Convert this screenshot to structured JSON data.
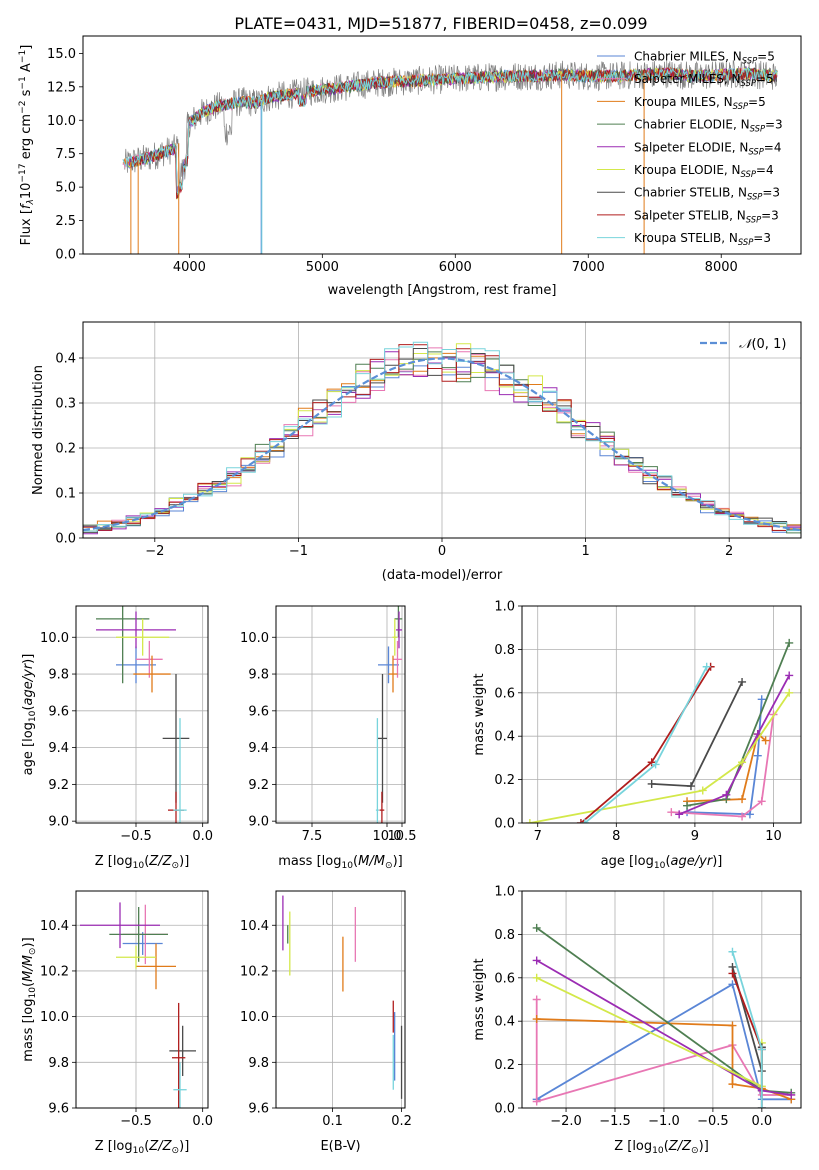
{
  "figure_title": "PLATE=0431, MJD=51877, FIBERID=0458, z=0.099",
  "colors": {
    "Chabrier MILES": "#5a86d6",
    "Salpeter MILES": "#e877b4",
    "Kroupa MILES": "#e07b1a",
    "Chabrier ELODIE": "#4f7f52",
    "Salpeter ELODIE": "#9b2cb3",
    "Kroupa ELODIE": "#d3e84a",
    "Chabrier STELIB": "#4a4a4a",
    "Salpeter STELIB": "#b01d1d",
    "Kroupa STELIB": "#78d4dc",
    "spectrum": "#808080",
    "normal": "#5b8fd6"
  },
  "chart_data": [
    {
      "id": "spectrum",
      "type": "line",
      "xlabel": "wavelength [Angstrom, rest frame]",
      "ylabel": "Flux [f_λ 10^-17 erg cm^-2 s^-1 A^-1]",
      "xlim": [
        3200,
        8600
      ],
      "ylim": [
        0,
        16.3
      ],
      "xticks": [
        4000,
        5000,
        6000,
        7000,
        8000
      ],
      "yticks": [
        0.0,
        2.5,
        5.0,
        7.5,
        10.0,
        12.5,
        15.0
      ],
      "legend_position": "right",
      "legend": [
        {
          "label": "Chabrier MILES, N_SSP=5",
          "model": "Chabrier MILES"
        },
        {
          "label": "Salpeter MILES, N_SSP=5",
          "model": "Salpeter MILES"
        },
        {
          "label": "Kroupa MILES, N_SSP=5",
          "model": "Kroupa MILES"
        },
        {
          "label": "Chabrier ELODIE, N_SSP=3",
          "model": "Chabrier ELODIE"
        },
        {
          "label": "Salpeter ELODIE, N_SSP=4",
          "model": "Salpeter ELODIE"
        },
        {
          "label": "Kroupa ELODIE, N_SSP=4",
          "model": "Kroupa ELODIE"
        },
        {
          "label": "Chabrier STELIB, N_SSP=3",
          "model": "Chabrier STELIB"
        },
        {
          "label": "Salpeter STELIB, N_SSP=3",
          "model": "Salpeter STELIB"
        },
        {
          "label": "Kroupa STELIB, N_SSP=3",
          "model": "Kroupa STELIB"
        }
      ],
      "continuum": {
        "x": [
          3500,
          3600,
          3700,
          3800,
          3900,
          4000,
          4100,
          4200,
          4300,
          4400,
          4500,
          4600,
          4800,
          5000,
          5200,
          5400,
          5600,
          5800,
          6000,
          6200,
          6400,
          6600,
          6800,
          7000,
          7200,
          7400,
          7600,
          7800,
          8000,
          8200,
          8400
        ],
        "y": [
          6.7,
          7.0,
          7.2,
          7.6,
          7.9,
          9.8,
          10.6,
          11.0,
          11.2,
          11.4,
          11.3,
          11.7,
          12.0,
          12.3,
          12.5,
          12.8,
          12.9,
          13.0,
          13.1,
          13.2,
          13.3,
          13.3,
          13.4,
          13.3,
          13.3,
          13.4,
          13.5,
          13.3,
          13.4,
          13.5,
          13.3
        ]
      }
    },
    {
      "id": "residuals",
      "type": "bar",
      "xlabel": "(data-model)/error",
      "ylabel": "Normed distribution",
      "xlim": [
        -2.5,
        2.5
      ],
      "ylim": [
        0,
        0.48
      ],
      "xticks": [
        -2,
        -1,
        0,
        1,
        2
      ],
      "yticks": [
        0.0,
        0.1,
        0.2,
        0.3,
        0.4
      ],
      "grid": true,
      "legend_position": "top-right",
      "legend": [
        {
          "label": "N(0, 1)"
        }
      ],
      "bins": [
        -2.5,
        -2.4,
        -2.3,
        -2.2,
        -2.1,
        -2.0,
        -1.9,
        -1.8,
        -1.7,
        -1.6,
        -1.5,
        -1.4,
        -1.3,
        -1.2,
        -1.1,
        -1.0,
        -0.9,
        -0.8,
        -0.7,
        -0.6,
        -0.5,
        -0.4,
        -0.3,
        -0.2,
        -0.1,
        0.0,
        0.1,
        0.2,
        0.3,
        0.4,
        0.5,
        0.6,
        0.7,
        0.8,
        0.9,
        1.0,
        1.1,
        1.2,
        1.3,
        1.4,
        1.5,
        1.6,
        1.7,
        1.8,
        1.9,
        2.0,
        2.1,
        2.2,
        2.3,
        2.4,
        2.5
      ]
    },
    {
      "id": "age-vs-z",
      "type": "scatter",
      "xlabel": "Z [log10(Z/Z☉)]",
      "ylabel": "age [log10(age/yr)]",
      "xlim": [
        -0.95,
        0.04
      ],
      "ylim": [
        8.99,
        10.17
      ],
      "xticks": [
        -0.5,
        0.0
      ],
      "yticks": [
        9.0,
        9.2,
        9.4,
        9.6,
        9.8,
        10.0
      ],
      "grid": true,
      "points": [
        {
          "model": "Chabrier MILES",
          "x": -0.5,
          "xerr": 0.15,
          "y": 9.85,
          "yerr": 0.1
        },
        {
          "model": "Salpeter MILES",
          "x": -0.4,
          "xerr": 0.1,
          "y": 9.88,
          "yerr": 0.1
        },
        {
          "model": "Kroupa MILES",
          "x": -0.38,
          "xerr": 0.14,
          "y": 9.8,
          "yerr": 0.1
        },
        {
          "model": "Chabrier ELODIE",
          "x": -0.6,
          "xerr": 0.2,
          "y": 10.1,
          "yerr": 0.35
        },
        {
          "model": "Salpeter ELODIE",
          "x": -0.5,
          "xerr": 0.3,
          "y": 10.04,
          "yerr": 0.1
        },
        {
          "model": "Kroupa ELODIE",
          "x": -0.45,
          "xerr": 0.2,
          "y": 10.0,
          "yerr": 0.1
        },
        {
          "model": "Chabrier STELIB",
          "x": -0.2,
          "xerr": 0.1,
          "y": 9.45,
          "yerr": 0.35
        },
        {
          "model": "Salpeter STELIB",
          "x": -0.2,
          "xerr": 0.06,
          "y": 9.06,
          "yerr": 0.1
        },
        {
          "model": "Kroupa STELIB",
          "x": -0.17,
          "xerr": 0.05,
          "y": 9.06,
          "yerr": 0.5
        }
      ]
    },
    {
      "id": "age-vs-mass",
      "type": "scatter",
      "xlabel": "mass [log10(M/M☉)]",
      "ylabel": "",
      "xlim": [
        6.3,
        10.6
      ],
      "ylim": [
        8.99,
        10.17
      ],
      "xticks": [
        7.5,
        10.0,
        10.5
      ],
      "yticks": [
        9.0,
        9.2,
        9.4,
        9.6,
        9.8,
        10.0
      ],
      "grid": true,
      "points": [
        {
          "model": "Chabrier MILES",
          "x": 10.05,
          "xerr": 0.35,
          "y": 9.85,
          "yerr": 0.1
        },
        {
          "model": "Salpeter MILES",
          "x": 10.35,
          "xerr": 0.15,
          "y": 9.88,
          "yerr": 0.1
        },
        {
          "model": "Kroupa MILES",
          "x": 10.2,
          "xerr": 0.15,
          "y": 9.8,
          "yerr": 0.1
        },
        {
          "model": "Chabrier ELODIE",
          "x": 10.38,
          "xerr": 0.13,
          "y": 10.1,
          "yerr": 0.1
        },
        {
          "model": "Salpeter ELODIE",
          "x": 10.4,
          "xerr": 0.1,
          "y": 10.04,
          "yerr": 0.1
        },
        {
          "model": "Kroupa ELODIE",
          "x": 10.26,
          "xerr": 0.08,
          "y": 10.0,
          "yerr": 0.1
        },
        {
          "model": "Chabrier STELIB",
          "x": 9.85,
          "xerr": 0.15,
          "y": 9.45,
          "yerr": 0.35
        },
        {
          "model": "Salpeter STELIB",
          "x": 9.83,
          "xerr": 0.08,
          "y": 9.06,
          "yerr": 0.1
        },
        {
          "model": "Kroupa STELIB",
          "x": 9.68,
          "xerr": 0.05,
          "y": 9.06,
          "yerr": 0.5
        }
      ]
    },
    {
      "id": "weight-vs-age",
      "type": "line",
      "xlabel": "age [log10(age/yr)]",
      "ylabel": "mass weight",
      "xlim": [
        6.8,
        10.35
      ],
      "ylim": [
        0,
        1.0
      ],
      "xticks": [
        7,
        8,
        9,
        10
      ],
      "yticks": [
        0.0,
        0.2,
        0.4,
        0.6,
        0.8,
        1.0
      ],
      "grid": true,
      "series": [
        {
          "model": "Chabrier MILES",
          "x": [
            8.9,
            9.7,
            9.8,
            9.85
          ],
          "y": [
            0.05,
            0.04,
            0.31,
            0.57
          ]
        },
        {
          "model": "Salpeter MILES",
          "x": [
            8.7,
            9.6,
            9.85,
            10.0
          ],
          "y": [
            0.05,
            0.03,
            0.1,
            0.5
          ]
        },
        {
          "model": "Kroupa MILES",
          "x": [
            8.9,
            9.6,
            9.8,
            9.9
          ],
          "y": [
            0.1,
            0.11,
            0.41,
            0.38
          ]
        },
        {
          "model": "Chabrier ELODIE",
          "x": [
            8.9,
            9.4,
            10.2
          ],
          "y": [
            0.08,
            0.11,
            0.83
          ]
        },
        {
          "model": "Salpeter ELODIE",
          "x": [
            8.8,
            9.4,
            9.8,
            10.2
          ],
          "y": [
            0.04,
            0.13,
            0.41,
            0.68
          ]
        },
        {
          "model": "Kroupa ELODIE",
          "x": [
            6.9,
            9.1,
            9.6,
            10.2
          ],
          "y": [
            0.0,
            0.15,
            0.28,
            0.6
          ]
        },
        {
          "model": "Chabrier STELIB",
          "x": [
            8.45,
            8.95,
            9.6
          ],
          "y": [
            0.18,
            0.17,
            0.65
          ]
        },
        {
          "model": "Salpeter STELIB",
          "x": [
            7.55,
            8.45,
            9.2
          ],
          "y": [
            0.0,
            0.28,
            0.72
          ]
        },
        {
          "model": "Kroupa STELIB",
          "x": [
            7.6,
            8.5,
            9.15
          ],
          "y": [
            0.0,
            0.27,
            0.72
          ]
        }
      ]
    },
    {
      "id": "mass-vs-z",
      "type": "scatter",
      "xlabel": "Z [log10(Z/Z☉)]",
      "ylabel": "mass [log10(M/M☉)]",
      "xlim": [
        -0.95,
        0.04
      ],
      "ylim": [
        9.6,
        10.55
      ],
      "xticks": [
        -0.5,
        0.0
      ],
      "yticks": [
        9.6,
        9.8,
        10.0,
        10.2,
        10.4
      ],
      "grid": true,
      "points": [
        {
          "model": "Chabrier MILES",
          "x": -0.45,
          "xerr": 0.15,
          "y": 10.32,
          "yerr": 0.05
        },
        {
          "model": "Salpeter MILES",
          "x": -0.43,
          "xerr": 0.17,
          "y": 10.36,
          "yerr": 0.13
        },
        {
          "model": "Kroupa MILES",
          "x": -0.35,
          "xerr": 0.15,
          "y": 10.22,
          "yerr": 0.1
        },
        {
          "model": "Chabrier ELODIE",
          "x": -0.48,
          "xerr": 0.22,
          "y": 10.36,
          "yerr": 0.12
        },
        {
          "model": "Salpeter ELODIE",
          "x": -0.62,
          "xerr": 0.3,
          "y": 10.4,
          "yerr": 0.1
        },
        {
          "model": "Kroupa ELODIE",
          "x": -0.5,
          "xerr": 0.15,
          "y": 10.26,
          "yerr": 0.05
        },
        {
          "model": "Chabrier STELIB",
          "x": -0.15,
          "xerr": 0.1,
          "y": 9.85,
          "yerr": 0.11
        },
        {
          "model": "Salpeter STELIB",
          "x": -0.18,
          "xerr": 0.05,
          "y": 9.82,
          "yerr": 0.24
        },
        {
          "model": "Kroupa STELIB",
          "x": -0.17,
          "xerr": 0.05,
          "y": 9.68,
          "yerr": 0.12
        }
      ]
    },
    {
      "id": "mass-vs-ebv",
      "type": "scatter",
      "xlabel": "E(B-V)",
      "ylabel": "",
      "xlim": [
        0.018,
        0.205
      ],
      "ylim": [
        9.6,
        10.55
      ],
      "xticks": [
        0.1,
        0.2
      ],
      "yticks": [
        9.6,
        9.8,
        10.0,
        10.2,
        10.4
      ],
      "grid": true,
      "points": [
        {
          "model": "Chabrier MILES",
          "x": 0.19,
          "y": 9.87,
          "yerr": 0.15
        },
        {
          "model": "Salpeter MILES",
          "x": 0.133,
          "y": 10.36,
          "yerr": 0.12
        },
        {
          "model": "Kroupa MILES",
          "x": 0.115,
          "y": 10.23,
          "yerr": 0.12
        },
        {
          "model": "Chabrier ELODIE",
          "x": 0.035,
          "y": 10.36,
          "yerr": 0.04
        },
        {
          "model": "Salpeter ELODIE",
          "x": 0.028,
          "y": 10.41,
          "yerr": 0.12
        },
        {
          "model": "Kroupa ELODIE",
          "x": 0.038,
          "y": 10.32,
          "yerr": 0.14
        },
        {
          "model": "Chabrier STELIB",
          "x": 0.2,
          "y": 9.8,
          "yerr": 0.16
        },
        {
          "model": "Salpeter STELIB",
          "x": 0.188,
          "y": 10.0,
          "yerr": 0.07
        },
        {
          "model": "Kroupa STELIB",
          "x": 0.188,
          "y": 9.8,
          "yerr": 0.12
        }
      ]
    },
    {
      "id": "weight-vs-z",
      "type": "line",
      "xlabel": "Z [log10(Z/Z☉)]",
      "ylabel": "mass weight",
      "xlim": [
        -2.45,
        0.4
      ],
      "ylim": [
        0,
        1.0
      ],
      "xticks": [
        -2.0,
        -1.5,
        -1.0,
        -0.5,
        0.0
      ],
      "yticks": [
        0.0,
        0.2,
        0.4,
        0.6,
        0.8,
        1.0
      ],
      "grid": true,
      "series": [
        {
          "model": "Chabrier MILES",
          "x": [
            -2.3,
            -0.3,
            0.0,
            0.3
          ],
          "y": [
            0.04,
            0.57,
            0.04,
            0.04
          ]
        },
        {
          "model": "Salpeter MILES",
          "x": [
            -2.3,
            -2.3,
            -0.3,
            0.0,
            0.3
          ],
          "y": [
            0.5,
            0.03,
            0.29,
            0.06,
            0.06
          ]
        },
        {
          "model": "Kroupa MILES",
          "x": [
            -2.3,
            -0.3,
            -0.3,
            0.0,
            0.3
          ],
          "y": [
            0.41,
            0.38,
            0.11,
            0.09,
            0.04
          ]
        },
        {
          "model": "Chabrier ELODIE",
          "x": [
            -2.3,
            0.0,
            0.3
          ],
          "y": [
            0.83,
            0.08,
            0.07
          ]
        },
        {
          "model": "Salpeter ELODIE",
          "x": [
            -2.3,
            0.0,
            0.3
          ],
          "y": [
            0.68,
            0.08,
            0.06
          ]
        },
        {
          "model": "Kroupa ELODIE",
          "x": [
            -2.3,
            0.0,
            0.0
          ],
          "y": [
            0.6,
            0.1,
            0.3
          ]
        },
        {
          "model": "Chabrier STELIB",
          "x": [
            -0.3,
            0.0,
            0.0
          ],
          "y": [
            0.65,
            0.17,
            0.28
          ]
        },
        {
          "model": "Salpeter STELIB",
          "x": [
            -0.3,
            0.0,
            0.0
          ],
          "y": [
            0.62,
            0.27,
            0.0
          ]
        },
        {
          "model": "Kroupa STELIB",
          "x": [
            -0.3,
            0.0,
            0.0
          ],
          "y": [
            0.72,
            0.27,
            0.0
          ]
        }
      ]
    }
  ]
}
